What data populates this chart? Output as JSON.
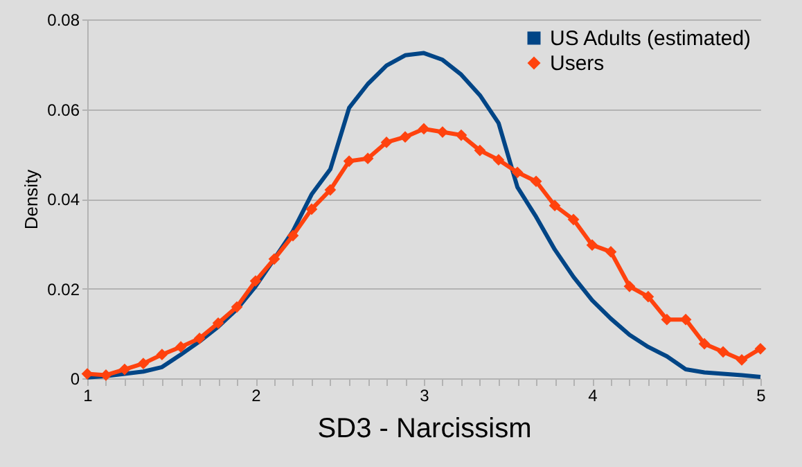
{
  "chart_data": {
    "type": "line",
    "xlabel": "SD3 - Narcissism",
    "ylabel": "Density",
    "x": [
      1,
      1.111,
      1.222,
      1.333,
      1.444,
      1.556,
      1.667,
      1.778,
      1.889,
      2,
      2.111,
      2.222,
      2.333,
      2.444,
      2.556,
      2.667,
      2.778,
      2.889,
      3,
      3.111,
      3.222,
      3.333,
      3.444,
      3.556,
      3.667,
      3.778,
      3.889,
      4,
      4.111,
      4.222,
      4.333,
      4.444,
      4.556,
      4.667,
      4.778,
      4.889,
      5
    ],
    "series": [
      {
        "name": "US Adults (estimated)",
        "color": "#004586",
        "marker": "none",
        "values": [
          0.0002,
          0.0005,
          0.001,
          0.0015,
          0.0025,
          0.0053,
          0.0082,
          0.0115,
          0.0154,
          0.0205,
          0.0266,
          0.0328,
          0.041,
          0.0466,
          0.0603,
          0.0656,
          0.0697,
          0.072,
          0.0725,
          0.071,
          0.0677,
          0.0631,
          0.0569,
          0.0426,
          0.036,
          0.0287,
          0.0226,
          0.0174,
          0.0133,
          0.0097,
          0.007,
          0.0049,
          0.002,
          0.0013,
          0.001,
          0.0007,
          0.0003
        ]
      },
      {
        "name": "Users",
        "color": "#ff420e",
        "marker": "diamond",
        "values": [
          0.001,
          0.0007,
          0.002,
          0.0033,
          0.0053,
          0.007,
          0.0089,
          0.0123,
          0.0159,
          0.0217,
          0.0266,
          0.0318,
          0.0377,
          0.042,
          0.0484,
          0.049,
          0.0526,
          0.0538,
          0.0556,
          0.0549,
          0.0542,
          0.0508,
          0.0487,
          0.0459,
          0.0439,
          0.0385,
          0.0354,
          0.0297,
          0.0282,
          0.0205,
          0.0182,
          0.0131,
          0.0131,
          0.0077,
          0.0059,
          0.0041,
          0.0066
        ]
      }
    ],
    "xlim": [
      1,
      5
    ],
    "xticks": [
      1,
      {
        "value": 1.111,
        "label": null
      },
      {
        "value": 1.222,
        "label": null
      },
      {
        "value": 1.333,
        "label": null
      },
      {
        "value": 1.444,
        "label": null
      },
      {
        "value": 1.556,
        "label": null
      },
      {
        "value": 1.667,
        "label": null
      },
      {
        "value": 1.778,
        "label": null
      },
      {
        "value": 1.889,
        "label": null
      },
      2,
      {
        "value": 2.111,
        "label": null
      },
      {
        "value": 2.222,
        "label": null
      },
      {
        "value": 2.333,
        "label": null
      },
      {
        "value": 2.444,
        "label": null
      },
      {
        "value": 2.556,
        "label": null
      },
      {
        "value": 2.667,
        "label": null
      },
      {
        "value": 2.778,
        "label": null
      },
      {
        "value": 2.889,
        "label": null
      },
      3,
      {
        "value": 3.111,
        "label": null
      },
      {
        "value": 3.222,
        "label": null
      },
      {
        "value": 3.333,
        "label": null
      },
      {
        "value": 3.444,
        "label": null
      },
      {
        "value": 3.556,
        "label": null
      },
      {
        "value": 3.667,
        "label": null
      },
      {
        "value": 3.778,
        "label": null
      },
      {
        "value": 3.889,
        "label": null
      },
      4,
      {
        "value": 4.111,
        "label": null
      },
      {
        "value": 4.222,
        "label": null
      },
      {
        "value": 4.333,
        "label": null
      },
      {
        "value": 4.444,
        "label": null
      },
      {
        "value": 4.556,
        "label": null
      },
      {
        "value": 4.667,
        "label": null
      },
      {
        "value": 4.778,
        "label": null
      },
      {
        "value": 4.889,
        "label": null
      },
      5
    ],
    "ylim": [
      0,
      0.08
    ],
    "yticks": [
      0,
      0.02,
      0.04,
      0.06,
      0.08
    ],
    "grid": "y",
    "legend": "top right",
    "line_style": "solid"
  }
}
